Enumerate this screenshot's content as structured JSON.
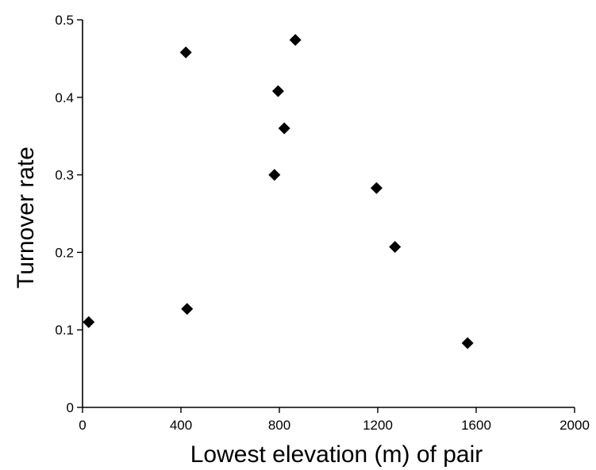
{
  "chart_data": {
    "type": "scatter",
    "title": "",
    "xlabel": "Lowest elevation (m) of pair",
    "ylabel": "Turnover rate",
    "xlim": [
      0,
      2000
    ],
    "ylim": [
      0,
      0.5
    ],
    "xticks": [
      0,
      400,
      800,
      1200,
      1600,
      2000
    ],
    "yticks": [
      0,
      0.1,
      0.2,
      0.3,
      0.4,
      0.5
    ],
    "xtick_labels": [
      "0",
      "400",
      "800",
      "1200",
      "1600",
      "2000"
    ],
    "ytick_labels": [
      "0",
      "0.1",
      "0.2",
      "0.3",
      "0.4",
      "0.5"
    ],
    "grid": false,
    "legend": "none",
    "marker": "diamond",
    "marker_color": "#000000",
    "points": [
      {
        "x": 25,
        "y": 0.11
      },
      {
        "x": 420,
        "y": 0.458
      },
      {
        "x": 425,
        "y": 0.127
      },
      {
        "x": 780,
        "y": 0.3
      },
      {
        "x": 795,
        "y": 0.408
      },
      {
        "x": 820,
        "y": 0.36
      },
      {
        "x": 865,
        "y": 0.474
      },
      {
        "x": 1195,
        "y": 0.283
      },
      {
        "x": 1270,
        "y": 0.207
      },
      {
        "x": 1565,
        "y": 0.083
      }
    ]
  }
}
